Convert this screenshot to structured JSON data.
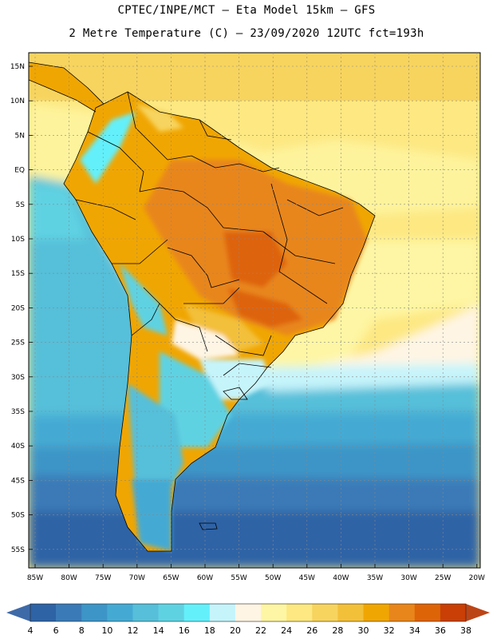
{
  "header": {
    "line1": "CPTEC/INPE/MCT –  Eta Model 15km – GFS",
    "line2": "2 Metre Temperature (C) – 23/09/2020 12UTC fct=193h"
  },
  "map": {
    "lat_labels": [
      "15N",
      "10N",
      "5N",
      "EQ",
      "5S",
      "10S",
      "15S",
      "20S",
      "25S",
      "30S",
      "35S",
      "40S",
      "45S",
      "50S",
      "55S"
    ],
    "lon_labels": [
      "85W",
      "80W",
      "75W",
      "70W",
      "65W",
      "60W",
      "55W",
      "50W",
      "45W",
      "40W",
      "35W",
      "30W",
      "25W",
      "20W"
    ]
  },
  "colorbar": {
    "labels": [
      "4",
      "6",
      "8",
      "10",
      "12",
      "14",
      "16",
      "18",
      "20",
      "22",
      "24",
      "26",
      "28",
      "30",
      "32",
      "34",
      "36",
      "38"
    ],
    "colors": [
      "#2e63a6",
      "#3a7ab7",
      "#3d95c7",
      "#45aad3",
      "#57bfd9",
      "#5fd2e2",
      "#64f0fb",
      "#c6f4fb",
      "#fff5e4",
      "#fef6a4",
      "#fde882",
      "#f7d45e",
      "#f3c03a",
      "#f0a602",
      "#e8861b",
      "#de6408",
      "#c93f06"
    ],
    "left_arrow_color": "#3e6aa8",
    "right_arrow_color": "#bc4516"
  }
}
